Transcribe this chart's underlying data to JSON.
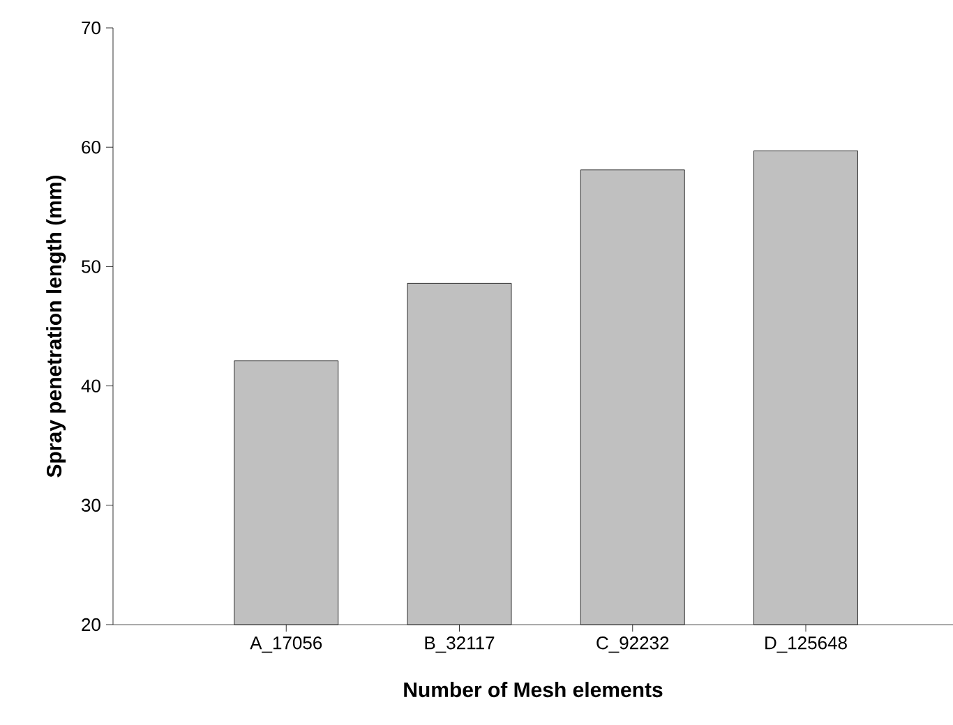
{
  "chart_data": {
    "type": "bar",
    "xlabel": "Number of Mesh elements",
    "ylabel": "Spray penetration length (mm)",
    "categories": [
      "A_17056",
      "B_32117",
      "C_92232",
      "D_125648"
    ],
    "values": [
      42.1,
      48.6,
      58.1,
      59.7
    ],
    "color": "#c0c0c0",
    "ylim": [
      20,
      70
    ],
    "yticks": [
      20,
      30,
      40,
      50,
      60,
      70
    ],
    "grid": false
  }
}
